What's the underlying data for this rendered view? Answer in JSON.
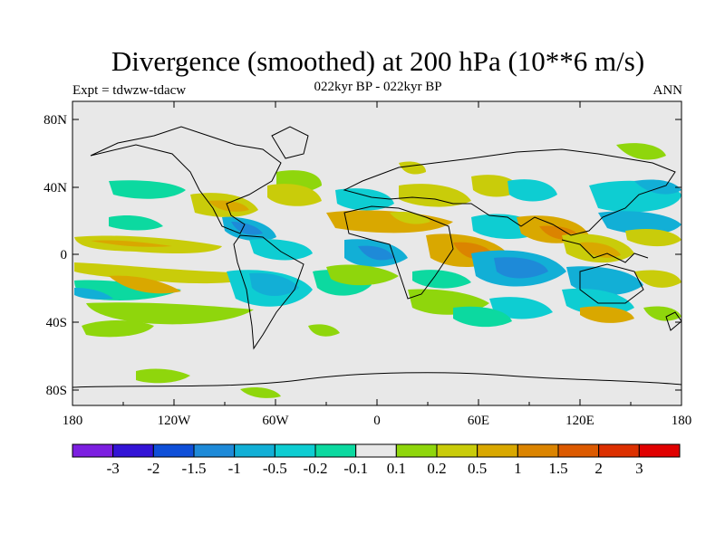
{
  "title": "Divergence (smoothed) at 200 hPa (10**6 m/s)",
  "subtitle_left": "Expt = tdwzw-tdacw",
  "subtitle_center": "022kyr BP - 022kyr BP",
  "subtitle_right": "ANN",
  "lat_labels": [
    "80N",
    "40N",
    "0",
    "40S",
    "80S"
  ],
  "lon_labels": [
    "180",
    "120W",
    "60W",
    "0",
    "60E",
    "120E",
    "180"
  ],
  "colorbar": {
    "colors": [
      "#7c1fe0",
      "#3314d6",
      "#0f4fd8",
      "#1e8ad8",
      "#12afd6",
      "#0ecdd2",
      "#0cd9a0",
      "#e8e8e8",
      "#8fd60c",
      "#c9cc0a",
      "#d9a800",
      "#db8400",
      "#dc5a00",
      "#dc3000",
      "#e00000"
    ],
    "labels": [
      "-3",
      "-2",
      "-1.5",
      "-1",
      "-0.5",
      "-0.2",
      "-0.1",
      "0.1",
      "0.2",
      "0.5",
      "1",
      "1.5",
      "2",
      "3"
    ]
  }
}
